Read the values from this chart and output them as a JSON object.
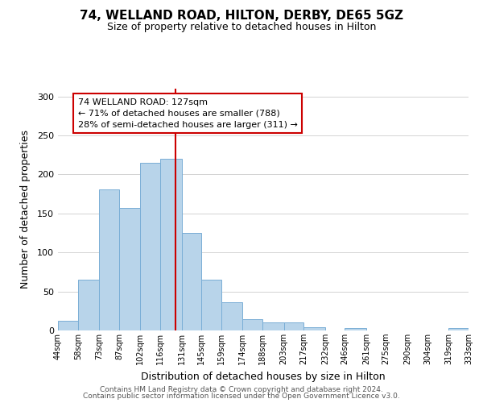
{
  "title": "74, WELLAND ROAD, HILTON, DERBY, DE65 5GZ",
  "subtitle": "Size of property relative to detached houses in Hilton",
  "xlabel": "Distribution of detached houses by size in Hilton",
  "ylabel": "Number of detached properties",
  "bin_labels": [
    "44sqm",
    "58sqm",
    "73sqm",
    "87sqm",
    "102sqm",
    "116sqm",
    "131sqm",
    "145sqm",
    "159sqm",
    "174sqm",
    "188sqm",
    "203sqm",
    "217sqm",
    "232sqm",
    "246sqm",
    "261sqm",
    "275sqm",
    "290sqm",
    "304sqm",
    "319sqm",
    "333sqm"
  ],
  "bar_values": [
    12,
    65,
    181,
    157,
    215,
    220,
    125,
    65,
    36,
    14,
    10,
    10,
    4,
    0,
    3,
    0,
    0,
    0,
    0,
    3
  ],
  "bin_edges": [
    44,
    58,
    73,
    87,
    102,
    116,
    131,
    145,
    159,
    174,
    188,
    203,
    217,
    232,
    246,
    261,
    275,
    290,
    304,
    319,
    333
  ],
  "property_size": 127,
  "property_label": "74 WELLAND ROAD: 127sqm",
  "annotation_line1": "← 71% of detached houses are smaller (788)",
  "annotation_line2": "28% of semi-detached houses are larger (311) →",
  "bar_color": "#b8d4ea",
  "bar_edge_color": "#7aaed6",
  "vline_color": "#cc0000",
  "annotation_box_edge": "#cc0000",
  "background_color": "#ffffff",
  "ylim": [
    0,
    310
  ],
  "yticks": [
    0,
    50,
    100,
    150,
    200,
    250,
    300
  ],
  "footer_line1": "Contains HM Land Registry data © Crown copyright and database right 2024.",
  "footer_line2": "Contains public sector information licensed under the Open Government Licence v3.0."
}
